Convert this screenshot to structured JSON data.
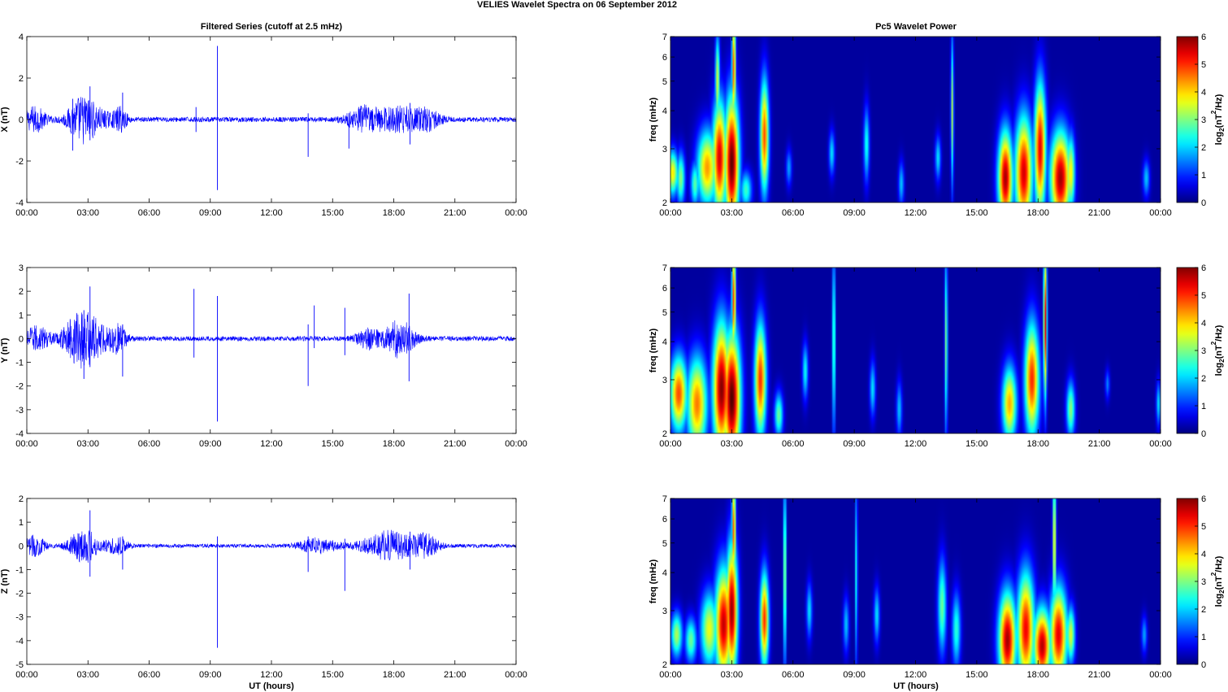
{
  "figure": {
    "title": "VELIES Wavelet Spectra on 06 September 2012",
    "left_title": "Filtered Series (cutoff at 2.5 mHz)",
    "right_title": "Pc5 Wavelet Power",
    "xlabel": "UT (hours)",
    "freq_label": "freq (mHz)",
    "colorbar_label_base": "log",
    "colorbar_label_sub": "2",
    "colorbar_label_open": "(nT",
    "colorbar_label_sup": "2",
    "colorbar_label_close": "/Hz)",
    "colors": {
      "line": "#0000ff",
      "background": "#00008f"
    }
  },
  "chart_data": [
    {
      "type": "line",
      "panel": "X",
      "ylabel": "X (nT)",
      "x_ticks": [
        "00:00",
        "03:00",
        "06:00",
        "09:00",
        "12:00",
        "15:00",
        "18:00",
        "21:00",
        "00:00"
      ],
      "xlim_hours": [
        0,
        24
      ],
      "ylim": [
        -4,
        4
      ],
      "y_ticks": [
        -4,
        -2,
        0,
        2,
        4
      ],
      "baseline_noise_nT": 0.12,
      "wave_packets": [
        {
          "center_h": 0.4,
          "width_h": 0.5,
          "amp": 0.6
        },
        {
          "center_h": 2.7,
          "width_h": 0.7,
          "amp": 1.0
        },
        {
          "center_h": 3.6,
          "width_h": 0.9,
          "amp": 0.3
        },
        {
          "center_h": 4.6,
          "width_h": 0.3,
          "amp": 0.5
        },
        {
          "center_h": 16.5,
          "width_h": 0.8,
          "amp": 0.55
        },
        {
          "center_h": 18.3,
          "width_h": 1.2,
          "amp": 0.6
        },
        {
          "center_h": 19.7,
          "width_h": 0.6,
          "amp": 0.35
        }
      ],
      "spikes": [
        {
          "t_h": 2.25,
          "lo": -1.5,
          "hi": 1.0
        },
        {
          "t_h": 3.1,
          "lo": -1.0,
          "hi": 1.6
        },
        {
          "t_h": 4.7,
          "lo": -0.3,
          "hi": 1.3
        },
        {
          "t_h": 8.3,
          "lo": -0.6,
          "hi": 0.6
        },
        {
          "t_h": 9.35,
          "lo": -3.4,
          "hi": 3.55
        },
        {
          "t_h": 13.8,
          "lo": -1.8,
          "hi": 0.3
        },
        {
          "t_h": 15.8,
          "lo": -1.4,
          "hi": 0.3
        },
        {
          "t_h": 18.8,
          "lo": -1.2,
          "hi": 0.8
        }
      ]
    },
    {
      "type": "line",
      "panel": "Y",
      "ylabel": "Y (nT)",
      "x_ticks": [
        "00:00",
        "03:00",
        "06:00",
        "09:00",
        "12:00",
        "15:00",
        "18:00",
        "21:00",
        "00:00"
      ],
      "xlim_hours": [
        0,
        24
      ],
      "ylim": [
        -4,
        3
      ],
      "y_ticks": [
        -4,
        -3,
        -2,
        -1,
        0,
        1,
        2,
        3
      ],
      "baseline_noise_nT": 0.1,
      "wave_packets": [
        {
          "center_h": 0.5,
          "width_h": 0.6,
          "amp": 0.5
        },
        {
          "center_h": 2.6,
          "width_h": 0.8,
          "amp": 1.1
        },
        {
          "center_h": 3.5,
          "width_h": 0.8,
          "amp": 0.4
        },
        {
          "center_h": 4.5,
          "width_h": 0.4,
          "amp": 0.5
        },
        {
          "center_h": 16.8,
          "width_h": 0.6,
          "amp": 0.4
        },
        {
          "center_h": 18.3,
          "width_h": 0.7,
          "amp": 0.8
        }
      ],
      "spikes": [
        {
          "t_h": 2.8,
          "lo": -1.7,
          "hi": 1.2
        },
        {
          "t_h": 3.1,
          "lo": -1.2,
          "hi": 2.2
        },
        {
          "t_h": 4.7,
          "lo": -1.6,
          "hi": 0.6
        },
        {
          "t_h": 8.2,
          "lo": -0.8,
          "hi": 2.1
        },
        {
          "t_h": 9.35,
          "lo": -3.5,
          "hi": 1.8
        },
        {
          "t_h": 13.8,
          "lo": -2.0,
          "hi": 0.6
        },
        {
          "t_h": 14.1,
          "lo": -0.4,
          "hi": 1.4
        },
        {
          "t_h": 15.6,
          "lo": -0.7,
          "hi": 1.3
        },
        {
          "t_h": 18.75,
          "lo": -1.8,
          "hi": 1.9
        }
      ]
    },
    {
      "type": "line",
      "panel": "Z",
      "ylabel": "Z (nT)",
      "x_ticks": [
        "00:00",
        "03:00",
        "06:00",
        "09:00",
        "12:00",
        "15:00",
        "18:00",
        "21:00",
        "00:00"
      ],
      "xlim_hours": [
        0,
        24
      ],
      "ylim": [
        -5,
        2
      ],
      "y_ticks": [
        -5,
        -4,
        -3,
        -2,
        -1,
        0,
        1,
        2
      ],
      "baseline_noise_nT": 0.08,
      "wave_packets": [
        {
          "center_h": 0.4,
          "width_h": 0.5,
          "amp": 0.4
        },
        {
          "center_h": 2.8,
          "width_h": 0.7,
          "amp": 0.7
        },
        {
          "center_h": 4.4,
          "width_h": 0.5,
          "amp": 0.35
        },
        {
          "center_h": 14.3,
          "width_h": 0.9,
          "amp": 0.3
        },
        {
          "center_h": 17.8,
          "width_h": 1.3,
          "amp": 0.6
        },
        {
          "center_h": 19.6,
          "width_h": 0.6,
          "amp": 0.4
        }
      ],
      "spikes": [
        {
          "t_h": 3.1,
          "lo": -1.3,
          "hi": 1.5
        },
        {
          "t_h": 4.7,
          "lo": -1.0,
          "hi": 0.4
        },
        {
          "t_h": 9.35,
          "lo": -4.3,
          "hi": 0.4
        },
        {
          "t_h": 13.8,
          "lo": -1.1,
          "hi": 0.4
        },
        {
          "t_h": 15.6,
          "lo": -1.9,
          "hi": 0.3
        },
        {
          "t_h": 18.8,
          "lo": -1.0,
          "hi": 0.6
        }
      ]
    },
    {
      "type": "heatmap",
      "panel": "X-wavelet",
      "ylabel": "freq (mHz)",
      "x_ticks": [
        "00:00",
        "03:00",
        "06:00",
        "09:00",
        "12:00",
        "15:00",
        "18:00",
        "21:00",
        "00:00"
      ],
      "xlim_hours": [
        0,
        24
      ],
      "ylim_mHz": [
        2,
        7
      ],
      "y_scale": "log",
      "y_ticks": [
        2,
        3,
        4,
        5,
        6,
        7
      ],
      "colorbar": {
        "range": [
          0,
          6
        ],
        "ticks": [
          0,
          1,
          2,
          3,
          4,
          5,
          6
        ],
        "colormap": "jet"
      },
      "blobs": [
        {
          "t_h": 0.1,
          "f_mHz": 2.5,
          "dt_h": 0.2,
          "dlogf": 0.12,
          "v": 3.8
        },
        {
          "t_h": 0.5,
          "f_mHz": 2.4,
          "dt_h": 0.15,
          "dlogf": 0.14,
          "v": 3.0
        },
        {
          "t_h": 1.2,
          "f_mHz": 2.3,
          "dt_h": 0.15,
          "dlogf": 0.12,
          "v": 2.7
        },
        {
          "t_h": 1.8,
          "f_mHz": 2.6,
          "dt_h": 0.35,
          "dlogf": 0.2,
          "v": 4.3
        },
        {
          "t_h": 2.4,
          "f_mHz": 2.8,
          "dt_h": 0.25,
          "dlogf": 0.3,
          "v": 5.5
        },
        {
          "t_h": 3.0,
          "f_mHz": 2.7,
          "dt_h": 0.25,
          "dlogf": 0.35,
          "v": 6.2
        },
        {
          "t_h": 3.1,
          "f_mHz": 5.5,
          "dt_h": 0.07,
          "dlogf": 0.3,
          "v": 4.8
        },
        {
          "t_h": 2.3,
          "f_mHz": 5.0,
          "dt_h": 0.08,
          "dlogf": 0.25,
          "v": 3.5
        },
        {
          "t_h": 3.7,
          "f_mHz": 2.2,
          "dt_h": 0.2,
          "dlogf": 0.1,
          "v": 2.5
        },
        {
          "t_h": 4.6,
          "f_mHz": 3.3,
          "dt_h": 0.15,
          "dlogf": 0.3,
          "v": 4.8
        },
        {
          "t_h": 5.8,
          "f_mHz": 2.6,
          "dt_h": 0.1,
          "dlogf": 0.1,
          "v": 1.6
        },
        {
          "t_h": 7.9,
          "f_mHz": 2.9,
          "dt_h": 0.1,
          "dlogf": 0.12,
          "v": 2.0
        },
        {
          "t_h": 9.6,
          "f_mHz": 3.1,
          "dt_h": 0.1,
          "dlogf": 0.2,
          "v": 2.3
        },
        {
          "t_h": 11.3,
          "f_mHz": 2.3,
          "dt_h": 0.1,
          "dlogf": 0.12,
          "v": 1.8
        },
        {
          "t_h": 13.1,
          "f_mHz": 2.8,
          "dt_h": 0.1,
          "dlogf": 0.12,
          "v": 2.0
        },
        {
          "t_h": 13.8,
          "f_mHz": 4.0,
          "dt_h": 0.05,
          "dlogf": 0.4,
          "v": 3.2
        },
        {
          "t_h": 16.4,
          "f_mHz": 2.4,
          "dt_h": 0.25,
          "dlogf": 0.25,
          "v": 5.8
        },
        {
          "t_h": 17.3,
          "f_mHz": 2.5,
          "dt_h": 0.3,
          "dlogf": 0.3,
          "v": 5.5
        },
        {
          "t_h": 18.1,
          "f_mHz": 3.0,
          "dt_h": 0.2,
          "dlogf": 0.35,
          "v": 5.4
        },
        {
          "t_h": 19.1,
          "f_mHz": 2.4,
          "dt_h": 0.35,
          "dlogf": 0.25,
          "v": 5.8
        },
        {
          "t_h": 19.6,
          "f_mHz": 2.5,
          "dt_h": 0.15,
          "dlogf": 0.2,
          "v": 3.8
        },
        {
          "t_h": 23.3,
          "f_mHz": 2.4,
          "dt_h": 0.12,
          "dlogf": 0.1,
          "v": 1.8
        }
      ]
    },
    {
      "type": "heatmap",
      "panel": "Y-wavelet",
      "ylabel": "freq (mHz)",
      "x_ticks": [
        "00:00",
        "03:00",
        "06:00",
        "09:00",
        "12:00",
        "15:00",
        "18:00",
        "21:00",
        "00:00"
      ],
      "xlim_hours": [
        0,
        24
      ],
      "ylim_mHz": [
        2,
        7
      ],
      "y_scale": "log",
      "y_ticks": [
        2,
        3,
        4,
        5,
        6,
        7
      ],
      "colorbar": {
        "range": [
          0,
          6
        ],
        "ticks": [
          0,
          1,
          2,
          3,
          4,
          5,
          6
        ],
        "colormap": "jet"
      },
      "blobs": [
        {
          "t_h": 0.4,
          "f_mHz": 2.7,
          "dt_h": 0.3,
          "dlogf": 0.2,
          "v": 4.8
        },
        {
          "t_h": 1.3,
          "f_mHz": 2.5,
          "dt_h": 0.35,
          "dlogf": 0.25,
          "v": 4.5
        },
        {
          "t_h": 2.5,
          "f_mHz": 2.8,
          "dt_h": 0.3,
          "dlogf": 0.35,
          "v": 6.0
        },
        {
          "t_h": 3.0,
          "f_mHz": 2.6,
          "dt_h": 0.3,
          "dlogf": 0.35,
          "v": 6.3
        },
        {
          "t_h": 3.1,
          "f_mHz": 5.5,
          "dt_h": 0.07,
          "dlogf": 0.3,
          "v": 5.0
        },
        {
          "t_h": 4.4,
          "f_mHz": 3.0,
          "dt_h": 0.2,
          "dlogf": 0.3,
          "v": 5.0
        },
        {
          "t_h": 5.3,
          "f_mHz": 2.3,
          "dt_h": 0.15,
          "dlogf": 0.12,
          "v": 2.8
        },
        {
          "t_h": 6.6,
          "f_mHz": 3.2,
          "dt_h": 0.1,
          "dlogf": 0.15,
          "v": 2.2
        },
        {
          "t_h": 8.0,
          "f_mHz": 4.0,
          "dt_h": 0.05,
          "dlogf": 0.5,
          "v": 3.0
        },
        {
          "t_h": 9.9,
          "f_mHz": 2.8,
          "dt_h": 0.1,
          "dlogf": 0.15,
          "v": 2.0
        },
        {
          "t_h": 11.2,
          "f_mHz": 2.4,
          "dt_h": 0.1,
          "dlogf": 0.15,
          "v": 1.8
        },
        {
          "t_h": 13.5,
          "f_mHz": 4.0,
          "dt_h": 0.05,
          "dlogf": 0.5,
          "v": 3.0
        },
        {
          "t_h": 16.6,
          "f_mHz": 2.5,
          "dt_h": 0.25,
          "dlogf": 0.2,
          "v": 4.2
        },
        {
          "t_h": 17.7,
          "f_mHz": 3.0,
          "dt_h": 0.25,
          "dlogf": 0.3,
          "v": 5.0
        },
        {
          "t_h": 18.35,
          "f_mHz": 4.6,
          "dt_h": 0.06,
          "dlogf": 0.4,
          "v": 5.5
        },
        {
          "t_h": 19.6,
          "f_mHz": 2.4,
          "dt_h": 0.15,
          "dlogf": 0.15,
          "v": 3.0
        },
        {
          "t_h": 21.4,
          "f_mHz": 2.9,
          "dt_h": 0.08,
          "dlogf": 0.08,
          "v": 1.4
        },
        {
          "t_h": 23.9,
          "f_mHz": 2.5,
          "dt_h": 0.08,
          "dlogf": 0.12,
          "v": 2.0
        }
      ]
    },
    {
      "type": "heatmap",
      "panel": "Z-wavelet",
      "ylabel": "freq (mHz)",
      "x_ticks": [
        "00:00",
        "03:00",
        "06:00",
        "09:00",
        "12:00",
        "15:00",
        "18:00",
        "21:00",
        "00:00"
      ],
      "xlim_hours": [
        0,
        24
      ],
      "ylim_mHz": [
        2,
        7
      ],
      "y_scale": "log",
      "y_ticks": [
        2,
        3,
        4,
        5,
        6,
        7
      ],
      "colorbar": {
        "range": [
          0,
          6
        ],
        "ticks": [
          0,
          1,
          2,
          3,
          4,
          5,
          6
        ],
        "colormap": "jet"
      },
      "blobs": [
        {
          "t_h": 0.3,
          "f_mHz": 2.5,
          "dt_h": 0.2,
          "dlogf": 0.12,
          "v": 3.2
        },
        {
          "t_h": 1.0,
          "f_mHz": 2.4,
          "dt_h": 0.2,
          "dlogf": 0.12,
          "v": 2.8
        },
        {
          "t_h": 1.9,
          "f_mHz": 2.6,
          "dt_h": 0.3,
          "dlogf": 0.2,
          "v": 3.6
        },
        {
          "t_h": 2.6,
          "f_mHz": 2.7,
          "dt_h": 0.3,
          "dlogf": 0.3,
          "v": 5.6
        },
        {
          "t_h": 3.0,
          "f_mHz": 3.0,
          "dt_h": 0.2,
          "dlogf": 0.35,
          "v": 5.9
        },
        {
          "t_h": 3.1,
          "f_mHz": 5.5,
          "dt_h": 0.07,
          "dlogf": 0.3,
          "v": 4.8
        },
        {
          "t_h": 4.6,
          "f_mHz": 2.8,
          "dt_h": 0.15,
          "dlogf": 0.25,
          "v": 5.0
        },
        {
          "t_h": 5.6,
          "f_mHz": 4.0,
          "dt_h": 0.05,
          "dlogf": 0.5,
          "v": 3.5
        },
        {
          "t_h": 6.8,
          "f_mHz": 3.0,
          "dt_h": 0.1,
          "dlogf": 0.15,
          "v": 2.0
        },
        {
          "t_h": 8.6,
          "f_mHz": 2.7,
          "dt_h": 0.1,
          "dlogf": 0.15,
          "v": 1.8
        },
        {
          "t_h": 9.1,
          "f_mHz": 4.0,
          "dt_h": 0.04,
          "dlogf": 0.5,
          "v": 2.5
        },
        {
          "t_h": 10.1,
          "f_mHz": 2.9,
          "dt_h": 0.1,
          "dlogf": 0.15,
          "v": 2.0
        },
        {
          "t_h": 13.3,
          "f_mHz": 3.1,
          "dt_h": 0.15,
          "dlogf": 0.25,
          "v": 2.8
        },
        {
          "t_h": 14.0,
          "f_mHz": 2.6,
          "dt_h": 0.15,
          "dlogf": 0.2,
          "v": 2.4
        },
        {
          "t_h": 16.5,
          "f_mHz": 2.4,
          "dt_h": 0.3,
          "dlogf": 0.25,
          "v": 5.8
        },
        {
          "t_h": 17.4,
          "f_mHz": 2.6,
          "dt_h": 0.3,
          "dlogf": 0.3,
          "v": 5.3
        },
        {
          "t_h": 18.2,
          "f_mHz": 2.3,
          "dt_h": 0.3,
          "dlogf": 0.2,
          "v": 5.7
        },
        {
          "t_h": 19.0,
          "f_mHz": 2.5,
          "dt_h": 0.3,
          "dlogf": 0.25,
          "v": 5.4
        },
        {
          "t_h": 18.8,
          "f_mHz": 5.0,
          "dt_h": 0.06,
          "dlogf": 0.4,
          "v": 4.0
        },
        {
          "t_h": 19.6,
          "f_mHz": 2.5,
          "dt_h": 0.15,
          "dlogf": 0.15,
          "v": 3.5
        },
        {
          "t_h": 23.2,
          "f_mHz": 2.5,
          "dt_h": 0.1,
          "dlogf": 0.1,
          "v": 1.6
        }
      ]
    }
  ]
}
